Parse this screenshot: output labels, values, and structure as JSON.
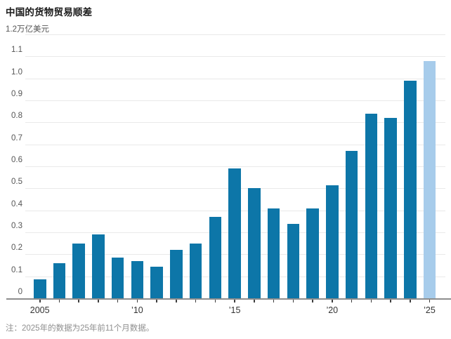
{
  "title": "中国的货物贸易顺差",
  "unit_label": "1.2万亿美元",
  "note": "注：2025年的数据为25年前11个月数据。",
  "colors": {
    "bar": "#0d76a8",
    "bar_highlight": "#a7cceb",
    "gridline": "#e9e9e9",
    "axis": "#8d8d8d",
    "tick": "#404040"
  },
  "chart_data": {
    "type": "bar",
    "title": "中国的货物贸易顺差",
    "unit": "万亿美元",
    "grid": true,
    "categories": [
      2005,
      2006,
      2007,
      2008,
      2009,
      2010,
      2011,
      2012,
      2013,
      2014,
      2015,
      2016,
      2017,
      2018,
      2019,
      2020,
      2021,
      2022,
      2023,
      2024,
      2025
    ],
    "values": [
      0.085,
      0.16,
      0.25,
      0.29,
      0.185,
      0.17,
      0.145,
      0.22,
      0.25,
      0.37,
      0.59,
      0.5,
      0.41,
      0.34,
      0.41,
      0.515,
      0.67,
      0.84,
      0.82,
      0.99,
      1.08
    ],
    "highlight_index": 20,
    "highlight_meaning": "2025年为前11个月数据",
    "ylim": [
      0,
      1.2
    ],
    "ytick_step": 0.1,
    "top_ytick_label": "1.2万亿美元",
    "xticks": [
      {
        "index": 0,
        "label": "2005"
      },
      {
        "index": 5,
        "label": "’10"
      },
      {
        "index": 10,
        "label": "’15"
      },
      {
        "index": 15,
        "label": "’20"
      },
      {
        "index": 20,
        "label": "’25"
      }
    ],
    "note": "注：2025年的数据为25年前11个月数据。"
  }
}
